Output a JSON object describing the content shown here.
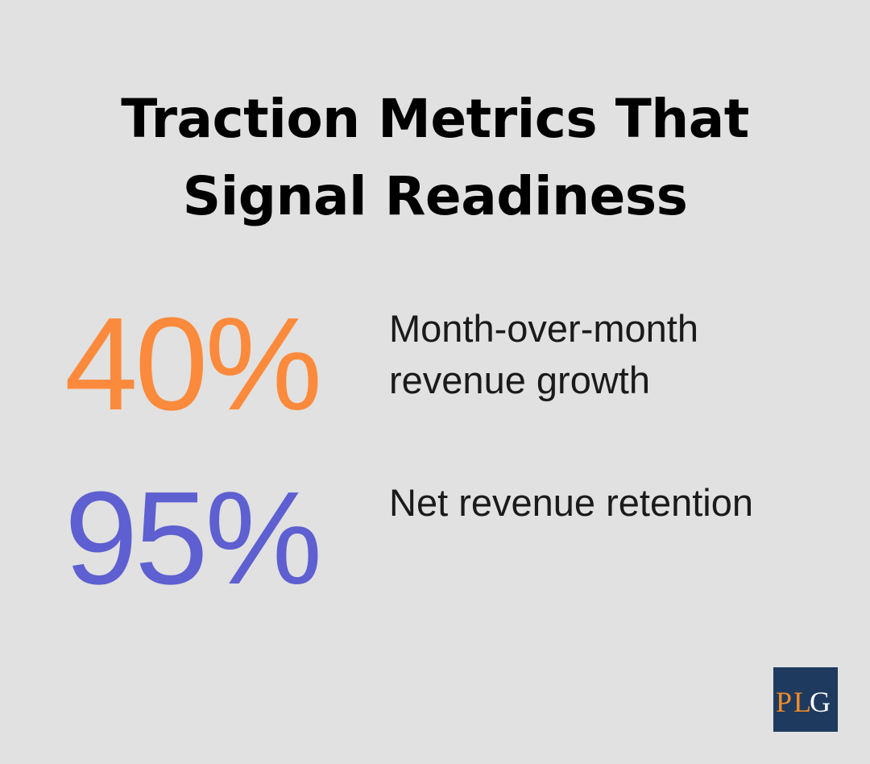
{
  "title": {
    "line1": "Traction Metrics That",
    "line2": "Signal Readiness"
  },
  "stats": [
    {
      "value": "40%",
      "label_line1": "Month-over-month",
      "label_line2": "revenue growth",
      "color": "#fc8a3c"
    },
    {
      "value": "95%",
      "label_line1": "Net revenue retention",
      "label_line2": "",
      "color": "#5e5fd0"
    }
  ],
  "logo": {
    "text": "PLG",
    "background": "#1e3a5f",
    "accent": "#f28c28"
  }
}
